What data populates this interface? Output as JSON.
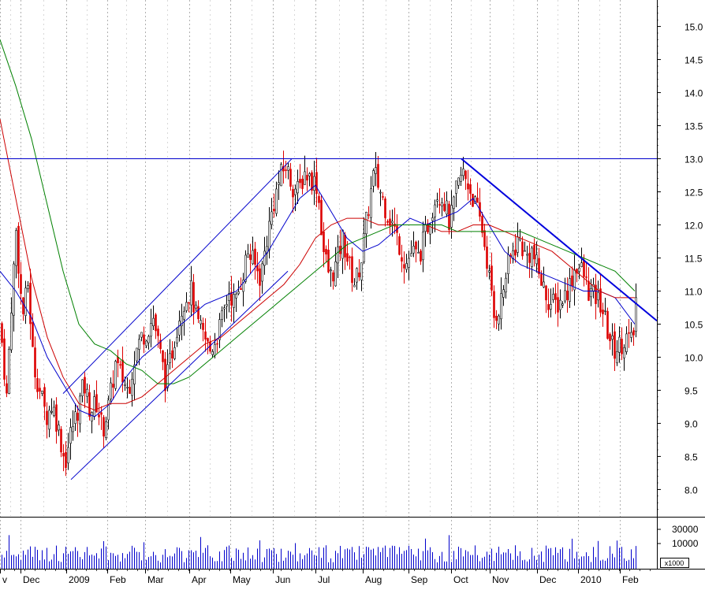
{
  "chart_data": {
    "type": "candlestick",
    "x_labels": [
      "v",
      "Dec",
      "2009",
      "Feb",
      "Mar",
      "Apr",
      "May",
      "Jun",
      "Jul",
      "Aug",
      "Sep",
      "Oct",
      "Nov",
      "Dec",
      "2010",
      "Feb"
    ],
    "price_ticks": [
      "15.0",
      "14.5",
      "14.0",
      "13.5",
      "13.0",
      "12.5",
      "12.0",
      "11.5",
      "11.0",
      "10.5",
      "10.0",
      "9.5",
      "9.0",
      "8.5",
      "8.0"
    ],
    "ylim": [
      7.6,
      15.4
    ],
    "volume_ticks": [
      "30000",
      "10000"
    ],
    "volume_unit": "x1000",
    "horizontal_line": 13.0,
    "trend_lines": [
      {
        "name": "channel-upper",
        "from": [
          80,
          9.45
        ],
        "to": [
          370,
          13.0
        ],
        "color": "#0000cc"
      },
      {
        "name": "channel-lower",
        "from": [
          90,
          8.15
        ],
        "to": [
          365,
          11.3
        ],
        "color": "#0000cc"
      },
      {
        "name": "downtrend",
        "from": [
          585,
          13.0
        ],
        "to": [
          833,
          10.55
        ],
        "color": "#0000dd"
      }
    ],
    "moving_averages": [
      {
        "name": "ma-short",
        "color": "#0000cc",
        "points": [
          [
            0,
            11.3
          ],
          [
            20,
            11.0
          ],
          [
            40,
            10.6
          ],
          [
            60,
            10.0
          ],
          [
            80,
            9.6
          ],
          [
            100,
            9.2
          ],
          [
            120,
            9.1
          ],
          [
            140,
            9.3
          ],
          [
            160,
            9.7
          ],
          [
            180,
            10.0
          ],
          [
            200,
            10.2
          ],
          [
            220,
            10.4
          ],
          [
            240,
            10.6
          ],
          [
            260,
            10.8
          ],
          [
            280,
            10.9
          ],
          [
            300,
            11.0
          ],
          [
            320,
            11.3
          ],
          [
            340,
            11.6
          ],
          [
            360,
            12.0
          ],
          [
            380,
            12.4
          ],
          [
            400,
            12.6
          ],
          [
            420,
            12.2
          ],
          [
            440,
            11.8
          ],
          [
            460,
            11.6
          ],
          [
            480,
            11.7
          ],
          [
            500,
            11.9
          ],
          [
            520,
            12.1
          ],
          [
            540,
            12.0
          ],
          [
            560,
            12.1
          ],
          [
            580,
            12.2
          ],
          [
            600,
            12.4
          ],
          [
            620,
            12.0
          ],
          [
            640,
            11.6
          ],
          [
            660,
            11.4
          ],
          [
            680,
            11.3
          ],
          [
            700,
            11.2
          ],
          [
            720,
            11.1
          ],
          [
            740,
            11.0
          ],
          [
            760,
            11.0
          ],
          [
            780,
            10.9
          ],
          [
            805,
            10.5
          ]
        ]
      },
      {
        "name": "ma-mid",
        "color": "#cc0000",
        "points": [
          [
            0,
            13.6
          ],
          [
            20,
            12.4
          ],
          [
            40,
            11.2
          ],
          [
            60,
            10.3
          ],
          [
            80,
            9.7
          ],
          [
            100,
            9.3
          ],
          [
            120,
            9.2
          ],
          [
            140,
            9.3
          ],
          [
            160,
            9.3
          ],
          [
            180,
            9.4
          ],
          [
            200,
            9.6
          ],
          [
            220,
            9.8
          ],
          [
            240,
            10.0
          ],
          [
            260,
            10.2
          ],
          [
            280,
            10.3
          ],
          [
            300,
            10.5
          ],
          [
            320,
            10.7
          ],
          [
            340,
            10.9
          ],
          [
            360,
            11.1
          ],
          [
            380,
            11.4
          ],
          [
            400,
            11.8
          ],
          [
            420,
            12.0
          ],
          [
            440,
            12.1
          ],
          [
            460,
            12.1
          ],
          [
            480,
            12.0
          ],
          [
            500,
            12.0
          ],
          [
            520,
            12.0
          ],
          [
            540,
            12.0
          ],
          [
            560,
            11.9
          ],
          [
            580,
            11.9
          ],
          [
            600,
            12.0
          ],
          [
            620,
            12.0
          ],
          [
            640,
            11.9
          ],
          [
            660,
            11.8
          ],
          [
            680,
            11.7
          ],
          [
            700,
            11.6
          ],
          [
            720,
            11.4
          ],
          [
            740,
            11.2
          ],
          [
            760,
            11.0
          ],
          [
            780,
            10.9
          ],
          [
            805,
            10.9
          ]
        ]
      },
      {
        "name": "ma-long",
        "color": "#008000",
        "points": [
          [
            0,
            14.8
          ],
          [
            20,
            14.1
          ],
          [
            40,
            13.3
          ],
          [
            60,
            12.3
          ],
          [
            80,
            11.3
          ],
          [
            100,
            10.5
          ],
          [
            120,
            10.2
          ],
          [
            140,
            10.1
          ],
          [
            160,
            9.9
          ],
          [
            180,
            9.8
          ],
          [
            200,
            9.6
          ],
          [
            220,
            9.6
          ],
          [
            240,
            9.7
          ],
          [
            260,
            9.9
          ],
          [
            280,
            10.1
          ],
          [
            300,
            10.3
          ],
          [
            320,
            10.5
          ],
          [
            340,
            10.7
          ],
          [
            360,
            10.9
          ],
          [
            380,
            11.1
          ],
          [
            400,
            11.3
          ],
          [
            420,
            11.5
          ],
          [
            440,
            11.7
          ],
          [
            460,
            11.8
          ],
          [
            480,
            11.9
          ],
          [
            500,
            12.0
          ],
          [
            520,
            12.0
          ],
          [
            540,
            12.0
          ],
          [
            560,
            12.0
          ],
          [
            580,
            11.9
          ],
          [
            600,
            11.9
          ],
          [
            620,
            11.9
          ],
          [
            640,
            11.9
          ],
          [
            660,
            11.9
          ],
          [
            680,
            11.8
          ],
          [
            700,
            11.7
          ],
          [
            720,
            11.6
          ],
          [
            740,
            11.5
          ],
          [
            760,
            11.4
          ],
          [
            780,
            11.3
          ],
          [
            805,
            11.0
          ]
        ]
      }
    ],
    "price_anchors": [
      [
        0,
        10.5
      ],
      [
        8,
        9.4
      ],
      [
        14,
        10.8
      ],
      [
        20,
        11.9
      ],
      [
        28,
        10.6
      ],
      [
        35,
        11.1
      ],
      [
        42,
        9.9
      ],
      [
        50,
        9.5
      ],
      [
        58,
        9.1
      ],
      [
        66,
        9.3
      ],
      [
        74,
        8.9
      ],
      [
        82,
        8.4
      ],
      [
        90,
        8.9
      ],
      [
        98,
        9.2
      ],
      [
        106,
        9.6
      ],
      [
        114,
        9.2
      ],
      [
        122,
        9.3
      ],
      [
        130,
        8.9
      ],
      [
        138,
        9.3
      ],
      [
        146,
        9.9
      ],
      [
        154,
        9.7
      ],
      [
        162,
        9.5
      ],
      [
        170,
        10.0
      ],
      [
        178,
        10.3
      ],
      [
        186,
        10.4
      ],
      [
        194,
        10.6
      ],
      [
        202,
        10.1
      ],
      [
        210,
        9.6
      ],
      [
        218,
        10.1
      ],
      [
        226,
        10.6
      ],
      [
        234,
        10.9
      ],
      [
        242,
        11.0
      ],
      [
        250,
        10.5
      ],
      [
        258,
        10.3
      ],
      [
        266,
        10.1
      ],
      [
        274,
        10.3
      ],
      [
        282,
        10.6
      ],
      [
        290,
        11.0
      ],
      [
        298,
        10.8
      ],
      [
        306,
        11.2
      ],
      [
        314,
        11.6
      ],
      [
        322,
        11.4
      ],
      [
        330,
        11.2
      ],
      [
        338,
        11.8
      ],
      [
        346,
        12.3
      ],
      [
        354,
        12.7
      ],
      [
        362,
        12.9
      ],
      [
        370,
        12.6
      ],
      [
        378,
        12.5
      ],
      [
        386,
        12.8
      ],
      [
        394,
        12.7
      ],
      [
        402,
        12.6
      ],
      [
        410,
        11.6
      ],
      [
        418,
        11.2
      ],
      [
        426,
        11.4
      ],
      [
        434,
        11.8
      ],
      [
        442,
        11.4
      ],
      [
        450,
        11.1
      ],
      [
        458,
        11.5
      ],
      [
        466,
        12.2
      ],
      [
        474,
        12.8
      ],
      [
        482,
        12.5
      ],
      [
        490,
        12.2
      ],
      [
        498,
        12.0
      ],
      [
        506,
        11.7
      ],
      [
        514,
        11.4
      ],
      [
        522,
        11.6
      ],
      [
        530,
        11.5
      ],
      [
        538,
        11.8
      ],
      [
        546,
        12.2
      ],
      [
        554,
        12.5
      ],
      [
        562,
        12.4
      ],
      [
        570,
        12.0
      ],
      [
        578,
        12.5
      ],
      [
        586,
        12.8
      ],
      [
        594,
        12.6
      ],
      [
        602,
        12.3
      ],
      [
        610,
        12.0
      ],
      [
        618,
        11.4
      ],
      [
        626,
        10.6
      ],
      [
        634,
        10.8
      ],
      [
        642,
        11.3
      ],
      [
        650,
        11.6
      ],
      [
        658,
        11.8
      ],
      [
        666,
        11.5
      ],
      [
        674,
        11.6
      ],
      [
        682,
        11.3
      ],
      [
        690,
        11.0
      ],
      [
        698,
        10.8
      ],
      [
        706,
        10.8
      ],
      [
        714,
        10.9
      ],
      [
        722,
        11.1
      ],
      [
        730,
        11.4
      ],
      [
        738,
        11.3
      ],
      [
        746,
        11.0
      ],
      [
        754,
        10.9
      ],
      [
        762,
        10.8
      ],
      [
        770,
        10.4
      ],
      [
        778,
        10.1
      ],
      [
        786,
        10.2
      ],
      [
        794,
        10.3
      ],
      [
        802,
        10.2
      ],
      [
        806,
        10.9
      ]
    ]
  }
}
